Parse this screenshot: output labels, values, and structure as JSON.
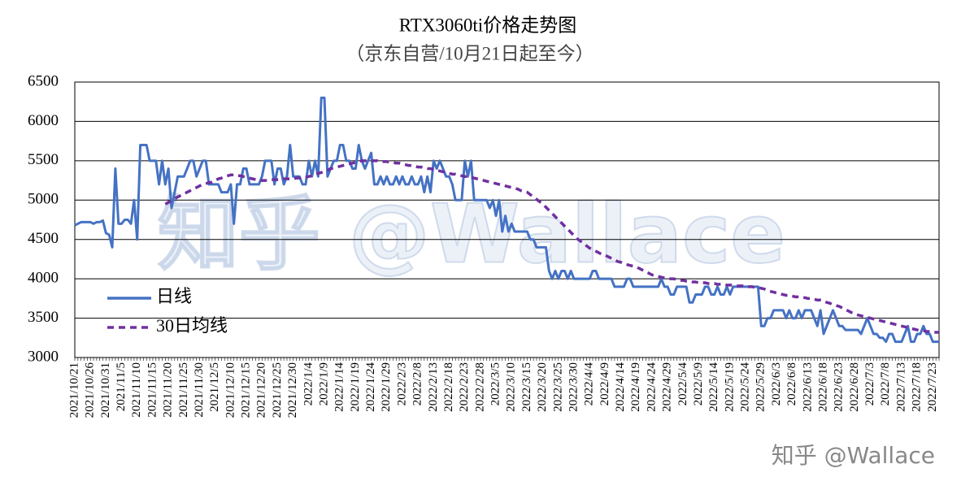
{
  "chart_data": {
    "type": "line",
    "title": "RTX3060ti价格走势图",
    "subtitle": "（京东自营/10月21日起至今）",
    "watermark": "知乎 @Wallace",
    "categories": [
      "2021/10/21",
      null,
      null,
      null,
      null,
      "2021/10/26",
      null,
      null,
      null,
      null,
      "2021/10/31",
      null,
      null,
      null,
      null,
      "2021/11/5",
      null,
      null,
      null,
      null,
      "2021/11/10",
      null,
      null,
      null,
      null,
      "2021/11/15",
      null,
      null,
      null,
      null,
      "2021/11/20",
      null,
      null,
      null,
      null,
      "2021/11/25",
      null,
      null,
      null,
      null,
      "2021/11/30",
      null,
      null,
      null,
      null,
      "2021/12/5",
      null,
      null,
      null,
      null,
      "2021/12/10",
      null,
      null,
      null,
      null,
      "2021/12/15",
      null,
      null,
      null,
      null,
      "2021/12/20",
      null,
      null,
      null,
      null,
      "2021/12/25",
      null,
      null,
      null,
      null,
      "2021/12/30",
      null,
      null,
      null,
      null,
      "2022/1/4",
      null,
      null,
      null,
      null,
      "2022/1/9",
      null,
      null,
      null,
      null,
      "2022/1/14",
      null,
      null,
      null,
      null,
      "2022/1/19",
      null,
      null,
      null,
      null,
      "2022/1/24",
      null,
      null,
      null,
      null,
      "2022/1/29",
      null,
      null,
      null,
      null,
      "2022/2/3",
      null,
      null,
      null,
      null,
      "2022/2/8",
      null,
      null,
      null,
      null,
      "2022/2/13",
      null,
      null,
      null,
      null,
      "2022/2/18",
      null,
      null,
      null,
      null,
      "2022/2/23",
      null,
      null,
      null,
      null,
      "2022/2/28",
      null,
      null,
      null,
      null,
      "2022/3/5",
      null,
      null,
      null,
      null,
      "2022/3/10",
      null,
      null,
      null,
      null,
      "2022/3/15",
      null,
      null,
      null,
      null,
      "2022/3/20",
      null,
      null,
      null,
      null,
      "2022/3/25",
      null,
      null,
      null,
      null,
      "2022/3/30",
      null,
      null,
      null,
      null,
      "2022/4/4",
      null,
      null,
      null,
      null,
      "2022/4/9",
      null,
      null,
      null,
      null,
      "2022/4/14",
      null,
      null,
      null,
      null,
      "2022/4/19",
      null,
      null,
      null,
      null,
      "2022/4/24",
      null,
      null,
      null,
      null,
      "2022/4/29",
      null,
      null,
      null,
      null,
      "2022/5/4",
      null,
      null,
      null,
      null,
      "2022/5/9",
      null,
      null,
      null,
      null,
      "2022/5/14",
      null,
      null,
      null,
      null,
      "2022/5/19",
      null,
      null,
      null,
      null,
      "2022/5/24",
      null,
      null,
      null,
      null,
      "2022/5/29",
      null,
      null,
      null,
      null,
      "2022/6/3",
      null,
      null,
      null,
      null,
      "2022/6/8",
      null,
      null,
      null,
      null,
      "2022/6/13",
      null,
      null,
      null,
      null,
      "2022/6/18",
      null,
      null,
      null,
      null,
      "2022/6/23",
      null,
      null,
      null,
      null,
      "2022/6/28",
      null,
      null,
      null,
      null,
      "2022/7/3",
      null,
      null,
      null,
      null,
      "2022/7/8",
      null,
      null,
      null,
      null,
      "2022/7/13",
      null,
      null,
      null,
      null,
      "2022/7/18",
      null,
      null,
      null,
      null,
      "2022/7/23",
      null,
      null
    ],
    "series": [
      {
        "name": "日线",
        "color": "#4472c4",
        "dashed": false,
        "values": [
          4680,
          4700,
          4720,
          4720,
          4720,
          4720,
          4700,
          4720,
          4720,
          4740,
          4580,
          4560,
          4400,
          5400,
          4700,
          4700,
          4750,
          4750,
          4700,
          5000,
          4500,
          5700,
          5700,
          5700,
          5500,
          5500,
          5500,
          5200,
          5500,
          5200,
          5400,
          4900,
          5100,
          5300,
          5300,
          5300,
          5400,
          5500,
          5500,
          5300,
          5400,
          5500,
          5500,
          5200,
          5200,
          5200,
          5200,
          5100,
          5100,
          5100,
          5200,
          4700,
          5200,
          5200,
          5400,
          5400,
          5200,
          5200,
          5200,
          5200,
          5300,
          5500,
          5500,
          5500,
          5200,
          5400,
          5400,
          5200,
          5300,
          5700,
          5300,
          5300,
          5300,
          5200,
          5200,
          5500,
          5300,
          5500,
          5300,
          6300,
          6300,
          5300,
          5400,
          5500,
          5500,
          5700,
          5700,
          5500,
          5500,
          5400,
          5400,
          5700,
          5500,
          5400,
          5500,
          5600,
          5200,
          5200,
          5300,
          5200,
          5300,
          5200,
          5200,
          5300,
          5200,
          5300,
          5200,
          5200,
          5300,
          5200,
          5200,
          5300,
          5100,
          5300,
          5100,
          5500,
          5400,
          5500,
          5400,
          5300,
          5300,
          5200,
          5000,
          5000,
          5000,
          5500,
          5300,
          5500,
          5000,
          5000,
          5000,
          5000,
          5000,
          4900,
          5000,
          4800,
          5000,
          4600,
          4800,
          4600,
          4700,
          4600,
          4600,
          4600,
          4600,
          4600,
          4500,
          4500,
          4400,
          4400,
          4400,
          4400,
          4100,
          4000,
          4100,
          4000,
          4100,
          4100,
          4000,
          4100,
          4000,
          4000,
          4000,
          4000,
          4000,
          4000,
          4100,
          4100,
          4000,
          4000,
          4000,
          4000,
          4000,
          3900,
          3900,
          3900,
          3900,
          4000,
          4000,
          3900,
          3900,
          3900,
          3900,
          3900,
          3900,
          3900,
          3900,
          3900,
          4000,
          3900,
          3900,
          3800,
          3800,
          3900,
          3900,
          3900,
          3900,
          3700,
          3700,
          3800,
          3800,
          3800,
          3900,
          3900,
          3800,
          3800,
          3900,
          3800,
          3800,
          3900,
          3800,
          3900,
          3900,
          3900,
          3900,
          3900,
          3900,
          3900,
          3900,
          3900,
          3400,
          3400,
          3500,
          3500,
          3600,
          3600,
          3600,
          3600,
          3500,
          3600,
          3500,
          3500,
          3600,
          3500,
          3600,
          3600,
          3600,
          3500,
          3400,
          3600,
          3300,
          3400,
          3500,
          3600,
          3500,
          3400,
          3400,
          3350,
          3350,
          3350,
          3350,
          3350,
          3300,
          3400,
          3500,
          3400,
          3300,
          3300,
          3250,
          3250,
          3200,
          3300,
          3300,
          3200,
          3200,
          3200,
          3300,
          3400,
          3200,
          3200,
          3300,
          3300,
          3400,
          3300,
          3300,
          3200,
          3200,
          3200
        ]
      },
      {
        "name": "30日均线",
        "color": "#7030a0",
        "dashed": true,
        "values": [
          null,
          null,
          null,
          null,
          null,
          null,
          null,
          null,
          null,
          null,
          null,
          null,
          null,
          null,
          null,
          null,
          null,
          null,
          null,
          null,
          null,
          null,
          null,
          null,
          null,
          null,
          null,
          null,
          null,
          4950,
          4970,
          5000,
          5020,
          5040,
          5060,
          5080,
          5100,
          5120,
          5140,
          5160,
          5180,
          5200,
          5210,
          5220,
          5230,
          5250,
          5270,
          5280,
          5300,
          5310,
          5320,
          5320,
          5310,
          5310,
          5300,
          5290,
          5280,
          5270,
          5260,
          5250,
          5250,
          5250,
          5250,
          5260,
          5260,
          5260,
          5260,
          5270,
          5270,
          5270,
          5270,
          5280,
          5280,
          5290,
          5290,
          5300,
          5310,
          5320,
          5340,
          5350,
          5370,
          5380,
          5400,
          5410,
          5420,
          5430,
          5440,
          5450,
          5460,
          5470,
          5480,
          5490,
          5500,
          5500,
          5500,
          5500,
          5500,
          5500,
          5490,
          5490,
          5490,
          5480,
          5480,
          5470,
          5470,
          5460,
          5450,
          5440,
          5440,
          5430,
          5420,
          5420,
          5410,
          5400,
          5400,
          5390,
          5380,
          5370,
          5360,
          5350,
          5340,
          5330,
          5330,
          5320,
          5310,
          5300,
          5300,
          5290,
          5280,
          5270,
          5260,
          5250,
          5240,
          5230,
          5220,
          5210,
          5200,
          5190,
          5180,
          5170,
          5160,
          5150,
          5140,
          5120,
          5110,
          5100,
          5070,
          5040,
          5010,
          4980,
          4950,
          4910,
          4870,
          4830,
          4790,
          4750,
          4710,
          4670,
          4630,
          4590,
          4550,
          4510,
          4480,
          4450,
          4420,
          4390,
          4370,
          4350,
          4330,
          4310,
          4300,
          4280,
          4260,
          4240,
          4220,
          4210,
          4190,
          4180,
          4170,
          4160,
          4150,
          4130,
          4110,
          4090,
          4070,
          4050,
          4040,
          4030,
          4020,
          4010,
          4000,
          4000,
          4000,
          3990,
          3980,
          3980,
          3970,
          3970,
          3960,
          3960,
          3950,
          3950,
          3950,
          3940,
          3940,
          3940,
          3930,
          3930,
          3930,
          3920,
          3920,
          3920,
          3910,
          3910,
          3910,
          3900,
          3900,
          3900,
          3890,
          3890,
          3880,
          3870,
          3850,
          3840,
          3830,
          3820,
          3810,
          3800,
          3790,
          3790,
          3780,
          3770,
          3770,
          3760,
          3760,
          3750,
          3750,
          3740,
          3730,
          3730,
          3720,
          3700,
          3690,
          3670,
          3660,
          3650,
          3630,
          3610,
          3590,
          3570,
          3550,
          3540,
          3530,
          3520,
          3510,
          3500,
          3490,
          3480,
          3470,
          3460,
          3450,
          3440,
          3430,
          3420,
          3410,
          3400,
          3390,
          3380,
          3370,
          3360,
          3350,
          3340,
          3340,
          3330,
          3330,
          3320,
          3320,
          3320
        ]
      }
    ],
    "ylim": [
      3000,
      6500
    ],
    "yticks": [
      3000,
      3500,
      4000,
      4500,
      5000,
      5500,
      6000,
      6500
    ],
    "grid": true,
    "legend": "left"
  }
}
